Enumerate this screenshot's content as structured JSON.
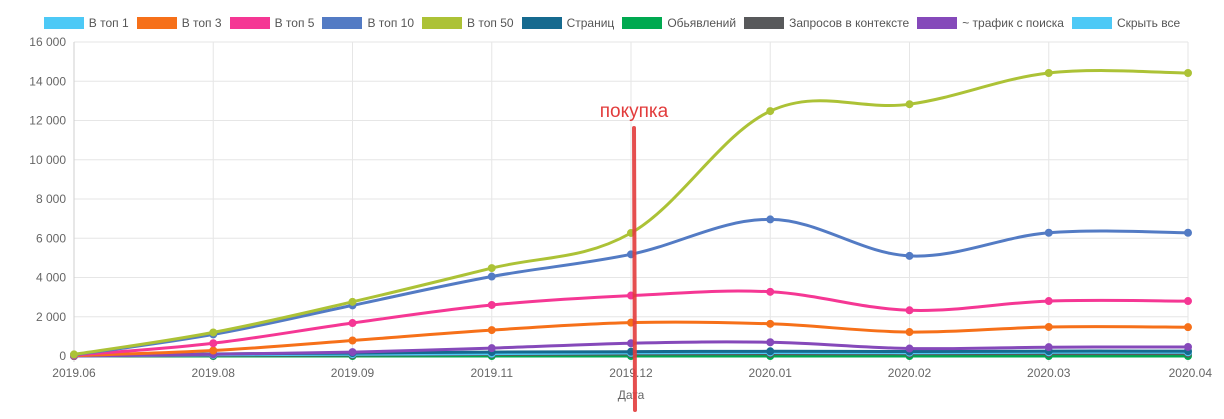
{
  "chart_data": {
    "type": "line",
    "xlabel": "Дата",
    "ylabel": "",
    "ylim": [
      0,
      16000
    ],
    "yticks": [
      0,
      2000,
      4000,
      6000,
      8000,
      10000,
      12000,
      14000,
      16000
    ],
    "ytick_labels": [
      "0",
      "2 000",
      "4 000",
      "6 000",
      "8 000",
      "10 000",
      "12 000",
      "14 000",
      "16 000"
    ],
    "categories": [
      "2019.06",
      "2019.08",
      "2019.09",
      "2019.11",
      "2019.12",
      "2020.01",
      "2020.02",
      "2020.03",
      "2020.04"
    ],
    "grid": true,
    "legend_position": "top",
    "legend_toggle_label": "Скрыть все",
    "legend_toggle_color": "#4dc9f6",
    "series": [
      {
        "name": "В топ 1",
        "color": "#4dc9f6",
        "values": [
          0,
          60,
          90,
          120,
          160,
          180,
          170,
          190,
          190
        ]
      },
      {
        "name": "В топ 3",
        "color": "#f67019",
        "values": [
          20,
          280,
          790,
          1320,
          1700,
          1640,
          1220,
          1480,
          1470
        ]
      },
      {
        "name": "В топ 5",
        "color": "#f53794",
        "values": [
          40,
          650,
          1680,
          2600,
          3080,
          3270,
          2330,
          2800,
          2800
        ]
      },
      {
        "name": "В топ 10",
        "color": "#537bc4",
        "values": [
          60,
          1100,
          2580,
          4050,
          5180,
          6960,
          5100,
          6280,
          6280
        ]
      },
      {
        "name": "В топ 50",
        "color": "#acc236",
        "values": [
          80,
          1200,
          2760,
          4480,
          6270,
          12480,
          12830,
          14420,
          14420
        ]
      },
      {
        "name": "Страниц",
        "color": "#166a8f",
        "values": [
          0,
          100,
          150,
          200,
          220,
          240,
          230,
          250,
          250
        ]
      },
      {
        "name": "Обьявлений",
        "color": "#00a950",
        "values": [
          0,
          0,
          0,
          0,
          0,
          0,
          0,
          0,
          0
        ]
      },
      {
        "name": "Запросов в контексте",
        "color": "#58595b",
        "values": [
          0,
          30,
          50,
          80,
          100,
          110,
          110,
          120,
          120
        ]
      },
      {
        "name": "~ трафик с поиска",
        "color": "#8549ba",
        "values": [
          0,
          90,
          200,
          400,
          650,
          700,
          380,
          450,
          460
        ]
      }
    ],
    "annotations": [
      {
        "type": "vertical-line",
        "x": "2019.12",
        "text": "покупка",
        "color": "#e23c3c"
      }
    ]
  }
}
